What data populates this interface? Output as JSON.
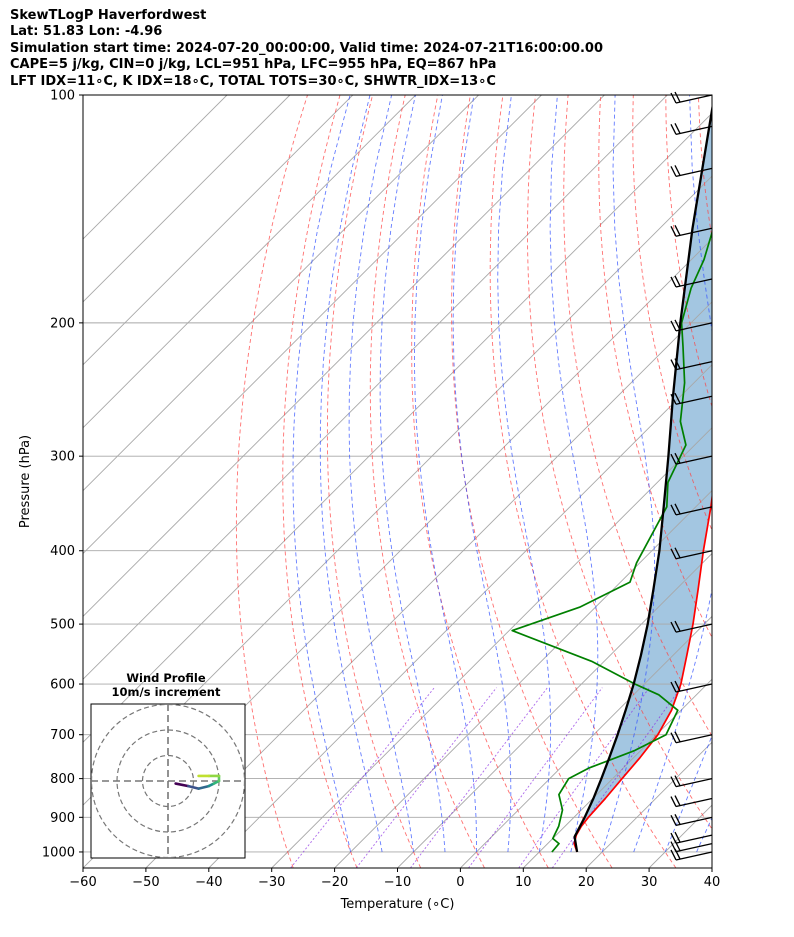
{
  "header": {
    "line1": "SkewTLogP Haverfordwest",
    "line2": "Lat: 51.83   Lon: -4.96",
    "line3": "Simulation start time: 2024-07-20_00:00:00, Valid time: 2024-07-21T16:00:00.00",
    "line4": "CAPE=5 j/kg, CIN=0 j/kg, LCL=951 hPa, LFC=955 hPa, EQ=867 hPa",
    "line5": "LFT IDX=11∘C, K IDX=18∘C, TOTAL TOTS=30∘C, SHWTR_IDX=13∘C"
  },
  "chart_data": {
    "type": "line",
    "xlabel": "Temperature (∘C)",
    "ylabel": "Pressure (hPa)",
    "xlim": [
      -60,
      40
    ],
    "ylim": [
      1050,
      100
    ],
    "yscale": "log",
    "skew": true,
    "x_ticks": [
      "−60",
      "−50",
      "−40",
      "−30",
      "−20",
      "−10",
      "0",
      "10",
      "20",
      "30",
      "40"
    ],
    "y_ticks": [
      "1000",
      "900",
      "800",
      "700",
      "600",
      "500",
      "400",
      "300",
      "200",
      "100"
    ],
    "grid": true,
    "series": [
      {
        "role": "temperature",
        "color": "#ff0000",
        "points": [
          [
            1000,
            16.0
          ],
          [
            975,
            14.2
          ],
          [
            950,
            13.2
          ],
          [
            925,
            12.6
          ],
          [
            900,
            12.3
          ],
          [
            850,
            12.0
          ],
          [
            800,
            11.5
          ],
          [
            750,
            11.0
          ],
          [
            700,
            10.2
          ],
          [
            650,
            8.5
          ],
          [
            600,
            5.8
          ],
          [
            550,
            2.2
          ],
          [
            500,
            -1.8
          ],
          [
            450,
            -6.5
          ],
          [
            400,
            -11.8
          ],
          [
            350,
            -17.6
          ],
          [
            300,
            -24.6
          ],
          [
            275,
            -29.3
          ],
          [
            250,
            -34.0
          ],
          [
            225,
            -40.0
          ],
          [
            200,
            -46.5
          ],
          [
            175,
            -53.5
          ],
          [
            150,
            -58.0
          ],
          [
            125,
            -63.0
          ],
          [
            110,
            -67.0
          ],
          [
            100,
            -70.0
          ]
        ]
      },
      {
        "role": "dewpoint",
        "color": "#008000",
        "points": [
          [
            1000,
            12.0
          ],
          [
            975,
            11.8
          ],
          [
            960,
            10.0
          ],
          [
            925,
            9.0
          ],
          [
            880,
            7.0
          ],
          [
            840,
            4.0
          ],
          [
            800,
            3.0
          ],
          [
            775,
            4.5
          ],
          [
            735,
            9.0
          ],
          [
            700,
            11.5
          ],
          [
            650,
            9.5
          ],
          [
            620,
            4.0
          ],
          [
            600,
            -1.5
          ],
          [
            560,
            -12.0
          ],
          [
            510,
            -29.5
          ],
          [
            475,
            -22.5
          ],
          [
            440,
            -18.5
          ],
          [
            415,
            -20.5
          ],
          [
            350,
            -24.6
          ],
          [
            325,
            -28.3
          ],
          [
            290,
            -31.4
          ],
          [
            270,
            -36.0
          ],
          [
            240,
            -41.5
          ],
          [
            215,
            -47.5
          ],
          [
            200,
            -51.5
          ],
          [
            180,
            -55.5
          ],
          [
            165,
            -58.0
          ],
          [
            150,
            -61.5
          ],
          [
            140,
            -62.0
          ],
          [
            125,
            -64.0
          ],
          [
            110,
            -67.0
          ],
          [
            100,
            -70.0
          ]
        ]
      },
      {
        "role": "parcel",
        "color": "#000000",
        "points": [
          [
            1000,
            16.0
          ],
          [
            955,
            13.2
          ],
          [
            900,
            11.7
          ],
          [
            850,
            10.1
          ],
          [
            800,
            8.2
          ],
          [
            750,
            6.1
          ],
          [
            700,
            3.8
          ],
          [
            650,
            1.2
          ],
          [
            600,
            -1.7
          ],
          [
            550,
            -5.1
          ],
          [
            500,
            -9.0
          ],
          [
            450,
            -13.6
          ],
          [
            400,
            -18.8
          ],
          [
            350,
            -25.1
          ],
          [
            300,
            -32.4
          ],
          [
            250,
            -41.2
          ],
          [
            200,
            -51.7
          ],
          [
            150,
            -64.8
          ],
          [
            100,
            -82.5
          ]
        ]
      }
    ],
    "wind_barbs": {
      "levels": [
        1000,
        975,
        950,
        900,
        850,
        800,
        700,
        600,
        500,
        400,
        350,
        300,
        250,
        225,
        200,
        175,
        150,
        125,
        110,
        100
      ]
    },
    "hodograph": {
      "title": "Wind Profile",
      "subtitle": "10m/s increment",
      "rings": [
        10,
        20,
        30
      ],
      "points": [
        [
          3,
          -1
        ],
        [
          8,
          -2
        ],
        [
          12,
          -3
        ],
        [
          16,
          -2
        ],
        [
          18,
          -1
        ],
        [
          20,
          0
        ],
        [
          20,
          2
        ],
        [
          16,
          2
        ],
        [
          12,
          2
        ]
      ]
    }
  }
}
